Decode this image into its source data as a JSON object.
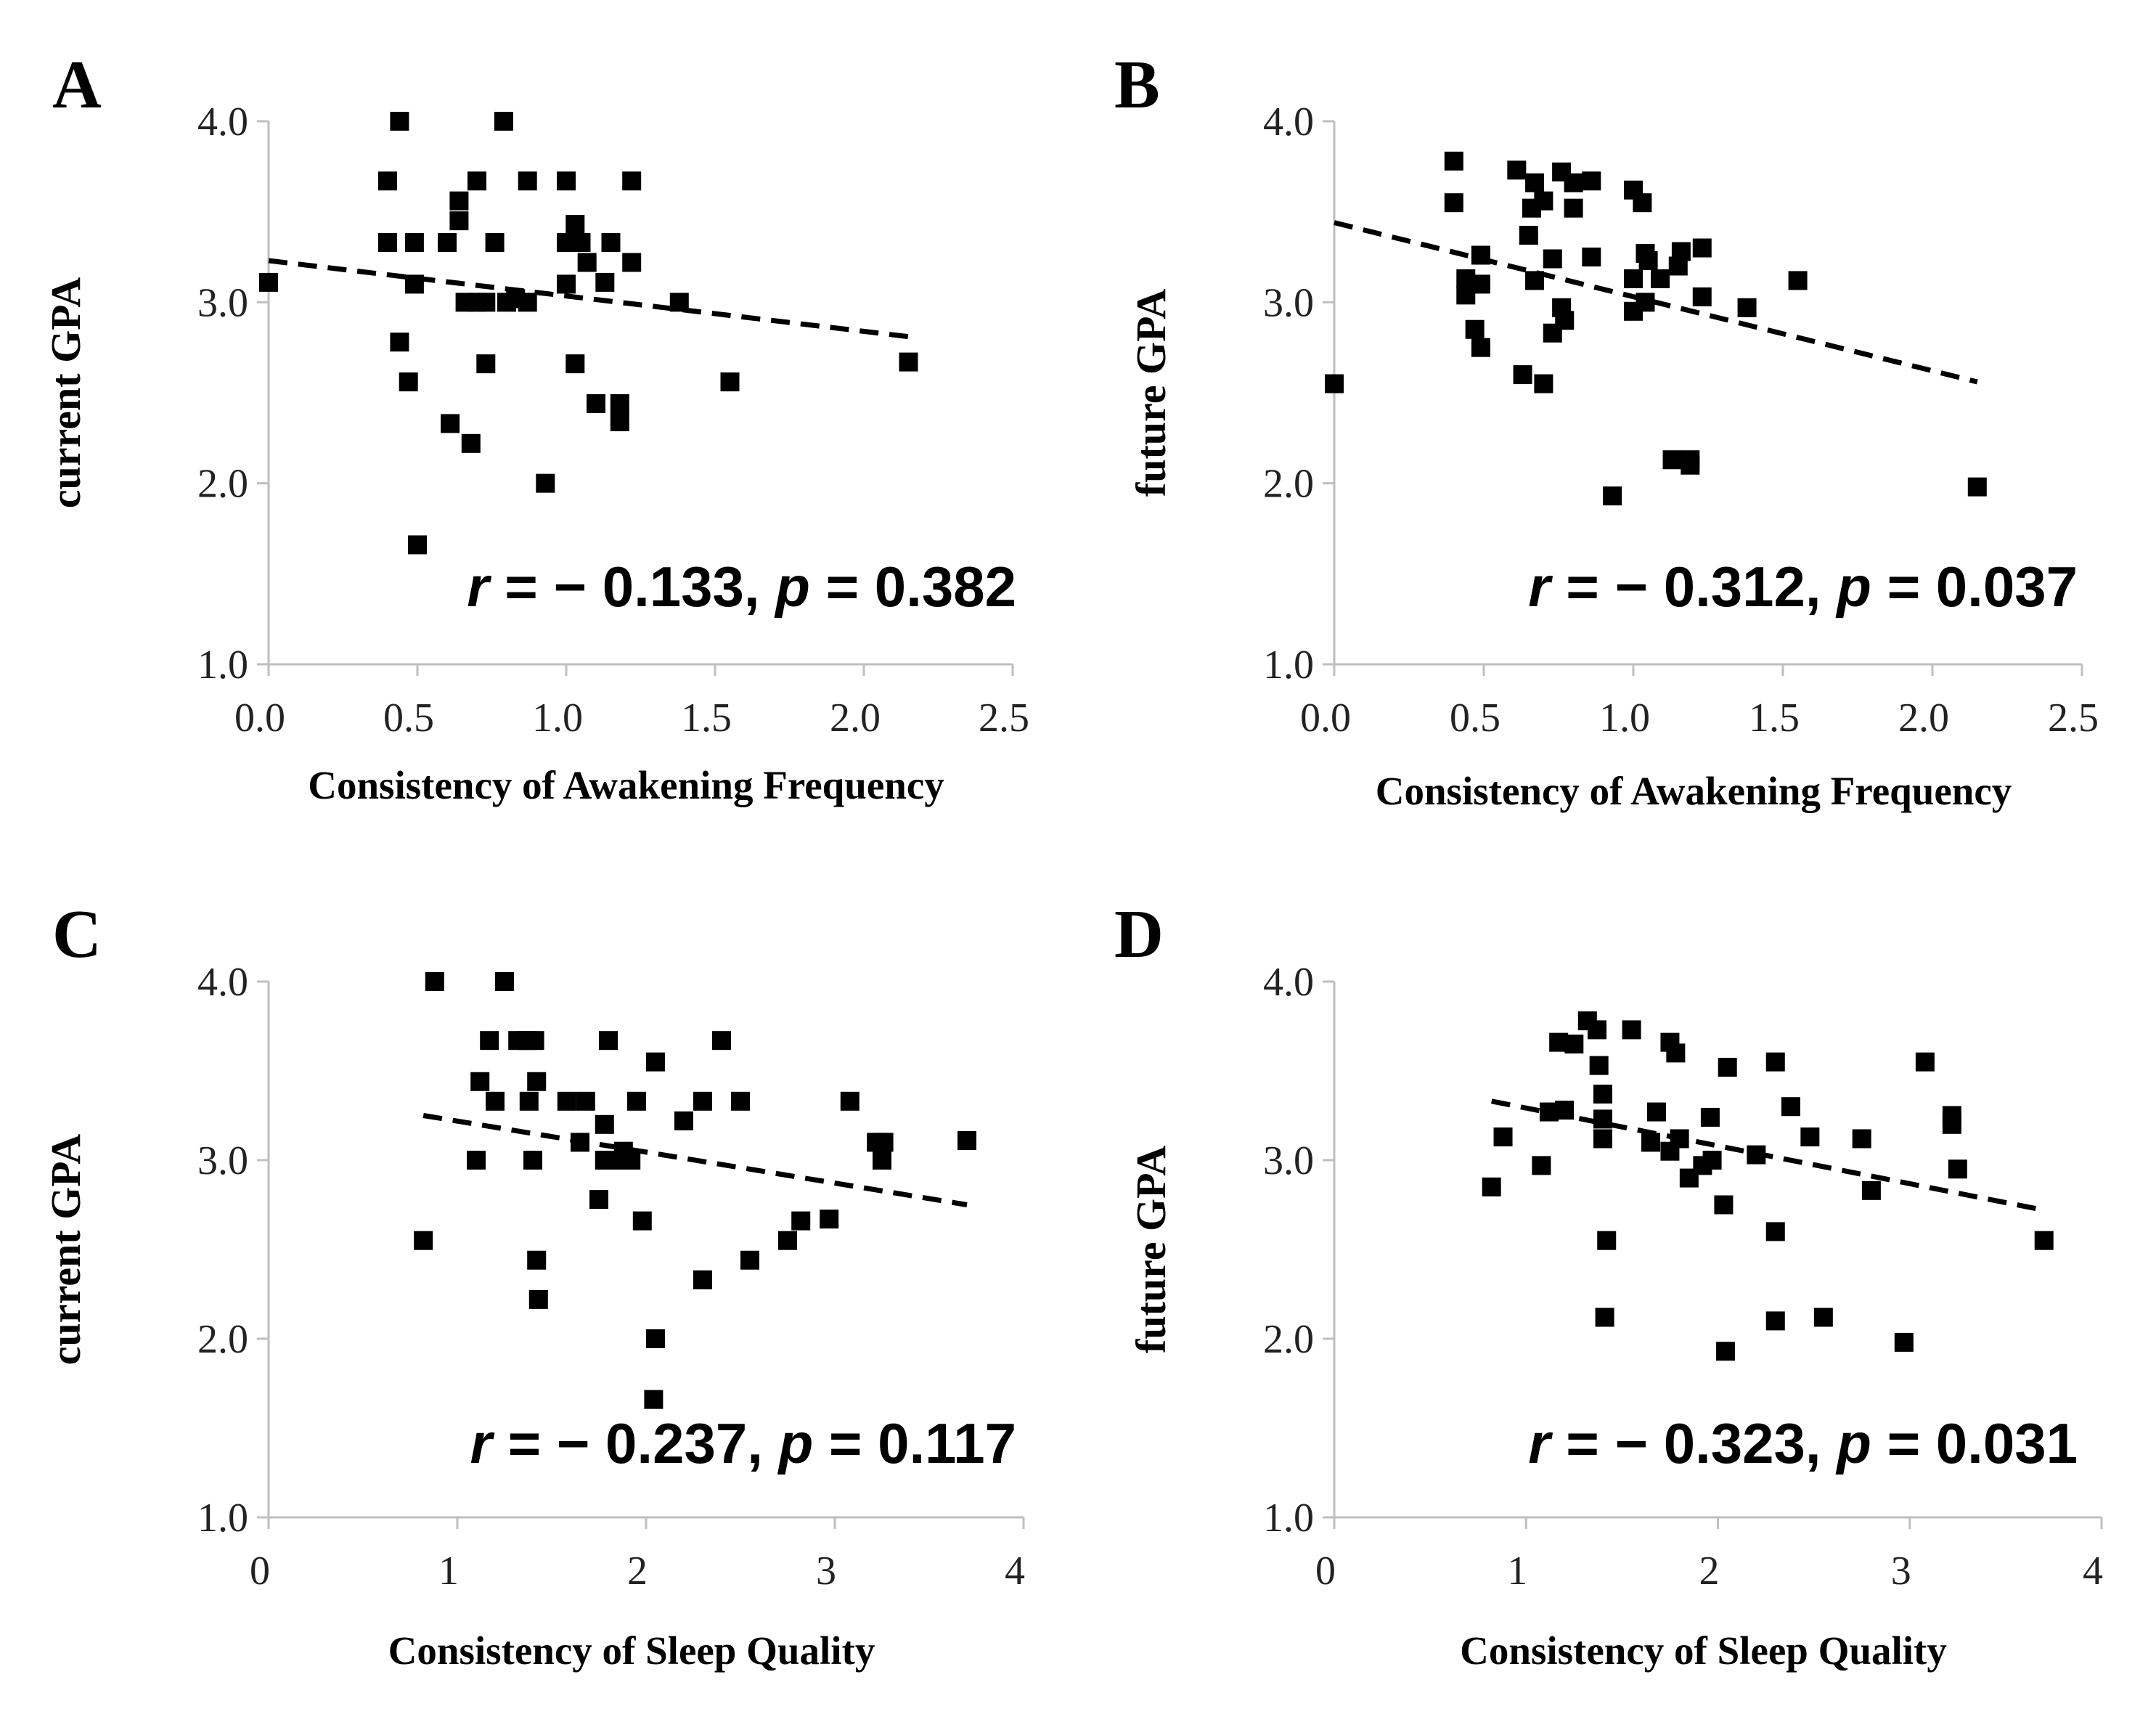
{
  "chart_data": [
    {
      "type": "scatter",
      "panel": "A",
      "xlabel": "Consistency of Awakening Frequency",
      "ylabel": "current GPA",
      "xlim": [
        0,
        2.5
      ],
      "ylim": [
        1,
        4
      ],
      "xticks": [
        "0.0",
        "0.5",
        "1.0",
        "1.5",
        "2.0",
        "2.5"
      ],
      "yticks": [
        "1.0",
        "2.0",
        "3.0",
        "4.0"
      ],
      "annotation": {
        "r_label": "r",
        "r_value": " = − 0.133, ",
        "p_label": "p",
        "p_value": " = 0.382"
      },
      "trendline": {
        "x": [
          0,
          2.15
        ],
        "y": [
          3.23,
          2.81
        ]
      },
      "points": [
        [
          0.0,
          3.11
        ],
        [
          0.4,
          3.67
        ],
        [
          0.4,
          3.33
        ],
        [
          0.44,
          4.0
        ],
        [
          0.44,
          2.78
        ],
        [
          0.47,
          2.56
        ],
        [
          0.49,
          3.33
        ],
        [
          0.49,
          3.1
        ],
        [
          0.5,
          1.66
        ],
        [
          0.6,
          3.33
        ],
        [
          0.61,
          2.33
        ],
        [
          0.64,
          3.45
        ],
        [
          0.64,
          3.56
        ],
        [
          0.66,
          3.0
        ],
        [
          0.68,
          2.22
        ],
        [
          0.7,
          3.67
        ],
        [
          0.7,
          3.0
        ],
        [
          0.73,
          3.0
        ],
        [
          0.73,
          2.66
        ],
        [
          0.76,
          3.33
        ],
        [
          0.79,
          4.0
        ],
        [
          0.8,
          3.0
        ],
        [
          0.83,
          3.02
        ],
        [
          0.87,
          3.67
        ],
        [
          0.87,
          3.0
        ],
        [
          0.93,
          2.0
        ],
        [
          1.0,
          3.67
        ],
        [
          1.0,
          3.33
        ],
        [
          1.0,
          3.1
        ],
        [
          1.03,
          3.43
        ],
        [
          1.03,
          2.66
        ],
        [
          1.05,
          3.33
        ],
        [
          1.07,
          3.22
        ],
        [
          1.1,
          2.44
        ],
        [
          1.13,
          3.11
        ],
        [
          1.15,
          3.33
        ],
        [
          1.18,
          2.44
        ],
        [
          1.18,
          2.34
        ],
        [
          1.22,
          3.67
        ],
        [
          1.22,
          3.22
        ],
        [
          1.38,
          3.0
        ],
        [
          1.55,
          2.56
        ],
        [
          2.15,
          2.67
        ]
      ]
    },
    {
      "type": "scatter",
      "panel": "B",
      "xlabel": "Consistency of Awakening Frequency",
      "ylabel": "future GPA",
      "xlim": [
        0,
        2.5
      ],
      "ylim": [
        1,
        4
      ],
      "xticks": [
        "0.0",
        "0.5",
        "1.0",
        "1.5",
        "2.0",
        "2.5"
      ],
      "yticks": [
        "1.0",
        "2.0",
        "3.0",
        "4.0"
      ],
      "annotation": {
        "r_label": "r",
        "r_value": " = − 0.312, ",
        "p_label": "p",
        "p_value": " = 0.037"
      },
      "trendline": {
        "x": [
          0,
          2.15
        ],
        "y": [
          3.44,
          2.56
        ]
      },
      "points": [
        [
          0.0,
          2.55
        ],
        [
          0.4,
          3.78
        ],
        [
          0.4,
          3.55
        ],
        [
          0.44,
          3.13
        ],
        [
          0.44,
          3.04
        ],
        [
          0.47,
          2.85
        ],
        [
          0.49,
          3.26
        ],
        [
          0.49,
          3.1
        ],
        [
          0.49,
          2.75
        ],
        [
          0.61,
          3.73
        ],
        [
          0.63,
          2.6
        ],
        [
          0.65,
          3.37
        ],
        [
          0.66,
          3.52
        ],
        [
          0.67,
          3.66
        ],
        [
          0.67,
          3.12
        ],
        [
          0.7,
          3.56
        ],
        [
          0.7,
          2.55
        ],
        [
          0.73,
          3.24
        ],
        [
          0.73,
          2.83
        ],
        [
          0.76,
          3.72
        ],
        [
          0.76,
          2.97
        ],
        [
          0.77,
          2.9
        ],
        [
          0.8,
          3.66
        ],
        [
          0.8,
          3.52
        ],
        [
          0.86,
          3.67
        ],
        [
          0.86,
          3.25
        ],
        [
          0.93,
          1.93
        ],
        [
          1.0,
          3.62
        ],
        [
          1.0,
          3.13
        ],
        [
          1.0,
          2.95
        ],
        [
          1.03,
          3.55
        ],
        [
          1.04,
          3.27
        ],
        [
          1.04,
          3.0
        ],
        [
          1.05,
          3.23
        ],
        [
          1.09,
          3.13
        ],
        [
          1.13,
          2.13
        ],
        [
          1.15,
          3.2
        ],
        [
          1.16,
          3.28
        ],
        [
          1.19,
          2.13
        ],
        [
          1.19,
          2.1
        ],
        [
          1.23,
          3.3
        ],
        [
          1.23,
          3.03
        ],
        [
          1.38,
          2.97
        ],
        [
          1.55,
          3.12
        ],
        [
          2.15,
          1.98
        ]
      ]
    },
    {
      "type": "scatter",
      "panel": "C",
      "xlabel": "Consistency of Sleep Quality",
      "ylabel": "current GPA",
      "xlim": [
        0,
        4
      ],
      "ylim": [
        1,
        4
      ],
      "xticks": [
        "0",
        "1",
        "2",
        "3",
        "4"
      ],
      "yticks": [
        "1.0",
        "2.0",
        "3.0",
        "4.0"
      ],
      "annotation": {
        "r_label": "r",
        "r_value": " = − 0.237, ",
        "p_label": "p",
        "p_value": " = 0.117"
      },
      "trendline": {
        "x": [
          0.82,
          3.7
        ],
        "y": [
          3.25,
          2.75
        ]
      },
      "points": [
        [
          0.82,
          2.55
        ],
        [
          0.88,
          4.0
        ],
        [
          1.1,
          3.0
        ],
        [
          1.12,
          3.44
        ],
        [
          1.17,
          3.67
        ],
        [
          1.2,
          3.33
        ],
        [
          1.25,
          4.0
        ],
        [
          1.32,
          3.67
        ],
        [
          1.37,
          3.67
        ],
        [
          1.38,
          3.33
        ],
        [
          1.41,
          3.67
        ],
        [
          1.4,
          3.0
        ],
        [
          1.42,
          3.44
        ],
        [
          1.42,
          2.44
        ],
        [
          1.43,
          2.22
        ],
        [
          1.58,
          3.33
        ],
        [
          1.65,
          3.1
        ],
        [
          1.68,
          3.33
        ],
        [
          1.75,
          2.78
        ],
        [
          1.78,
          3.2
        ],
        [
          1.78,
          3.0
        ],
        [
          1.8,
          3.67
        ],
        [
          1.85,
          3.0
        ],
        [
          1.88,
          3.05
        ],
        [
          1.92,
          3.0
        ],
        [
          1.95,
          3.33
        ],
        [
          1.98,
          2.66
        ],
        [
          2.05,
          3.55
        ],
        [
          2.05,
          2.0
        ],
        [
          2.04,
          1.66
        ],
        [
          2.2,
          3.22
        ],
        [
          2.3,
          3.33
        ],
        [
          2.3,
          2.33
        ],
        [
          2.4,
          3.67
        ],
        [
          2.5,
          3.33
        ],
        [
          2.55,
          2.44
        ],
        [
          2.75,
          2.55
        ],
        [
          2.82,
          2.66
        ],
        [
          2.97,
          2.67
        ],
        [
          3.08,
          3.33
        ],
        [
          3.22,
          3.1
        ],
        [
          3.25,
          3.0
        ],
        [
          3.26,
          3.1
        ],
        [
          3.7,
          3.11
        ]
      ]
    },
    {
      "type": "scatter",
      "panel": "D",
      "xlabel": "Consistency of Sleep Quality",
      "ylabel": "future GPA",
      "xlim": [
        0,
        4
      ],
      "ylim": [
        1,
        4
      ],
      "xticks": [
        "0",
        "1",
        "2",
        "3",
        "4"
      ],
      "yticks": [
        "1.0",
        "2.0",
        "3.0",
        "4.0"
      ],
      "annotation": {
        "r_label": "r",
        "r_value": " = − 0.323, ",
        "p_label": "p",
        "p_value": " = 0.031"
      },
      "trendline": {
        "x": [
          0.82,
          3.7
        ],
        "y": [
          3.33,
          2.72
        ]
      },
      "points": [
        [
          0.82,
          2.85
        ],
        [
          0.88,
          3.13
        ],
        [
          1.08,
          2.97
        ],
        [
          1.12,
          3.27
        ],
        [
          1.17,
          3.66
        ],
        [
          1.2,
          3.28
        ],
        [
          1.25,
          3.65
        ],
        [
          1.32,
          3.78
        ],
        [
          1.37,
          3.73
        ],
        [
          1.38,
          3.53
        ],
        [
          1.4,
          3.37
        ],
        [
          1.4,
          3.23
        ],
        [
          1.4,
          3.12
        ],
        [
          1.42,
          2.55
        ],
        [
          1.41,
          2.12
        ],
        [
          1.55,
          3.73
        ],
        [
          1.65,
          3.1
        ],
        [
          1.68,
          3.27
        ],
        [
          1.75,
          3.66
        ],
        [
          1.75,
          3.05
        ],
        [
          1.78,
          3.6
        ],
        [
          1.8,
          3.12
        ],
        [
          1.85,
          2.9
        ],
        [
          1.92,
          2.97
        ],
        [
          1.96,
          3.24
        ],
        [
          1.97,
          3.0
        ],
        [
          2.03,
          2.75
        ],
        [
          2.05,
          3.52
        ],
        [
          2.04,
          1.93
        ],
        [
          2.2,
          3.03
        ],
        [
          2.3,
          3.55
        ],
        [
          2.3,
          2.6
        ],
        [
          2.3,
          2.1
        ],
        [
          2.38,
          3.3
        ],
        [
          2.48,
          3.13
        ],
        [
          2.55,
          2.12
        ],
        [
          2.75,
          3.12
        ],
        [
          2.8,
          2.83
        ],
        [
          2.97,
          1.98
        ],
        [
          3.08,
          3.55
        ],
        [
          3.22,
          3.25
        ],
        [
          3.22,
          3.2
        ],
        [
          3.25,
          2.95
        ],
        [
          3.7,
          2.55
        ]
      ]
    }
  ]
}
